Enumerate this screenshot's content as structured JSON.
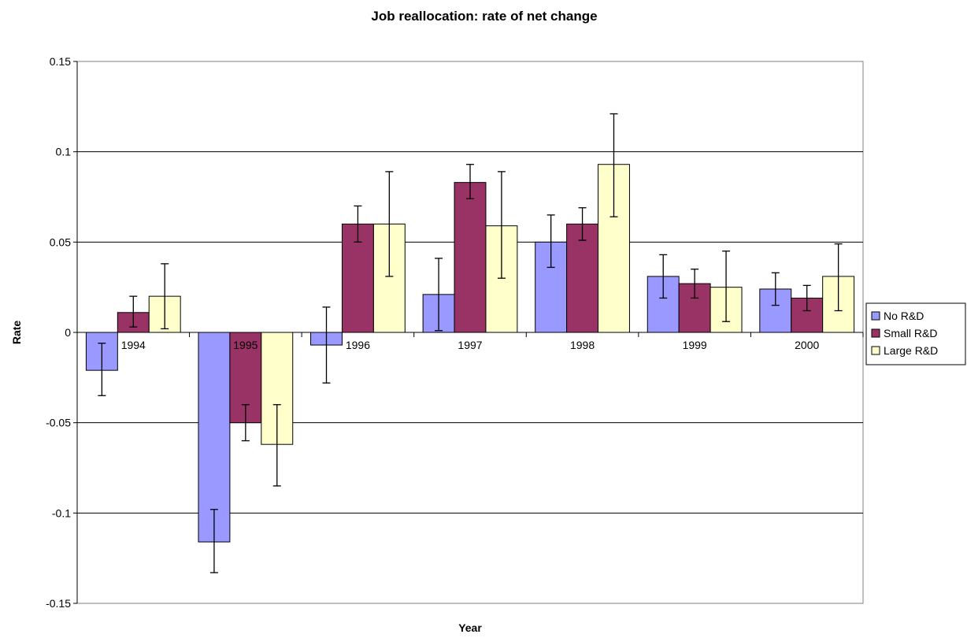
{
  "chart_data": {
    "type": "bar",
    "title": "Job reallocation: rate of net change",
    "xlabel": "Year",
    "ylabel": "Rate",
    "categories": [
      "1994",
      "1995",
      "1996",
      "1997",
      "1998",
      "1999",
      "2000"
    ],
    "ylim": [
      -0.15,
      0.15
    ],
    "yticks": [
      0.15,
      0.1,
      0.05,
      0,
      -0.05,
      -0.1,
      -0.15
    ],
    "ytick_labels": [
      "0.15",
      "0.1",
      "0.05",
      "0",
      "-0.05",
      "-0.1",
      "-0.15"
    ],
    "grid": true,
    "legend_position": "right",
    "series": [
      {
        "name": "No R&D",
        "color": "#9999FF",
        "values": [
          -0.021,
          -0.116,
          -0.007,
          0.021,
          0.05,
          0.031,
          0.024
        ],
        "error_low": [
          -0.035,
          -0.133,
          -0.028,
          0.001,
          0.036,
          0.019,
          0.015
        ],
        "error_high": [
          -0.006,
          -0.098,
          0.014,
          0.041,
          0.065,
          0.043,
          0.033
        ]
      },
      {
        "name": "Small R&D",
        "color": "#993366",
        "values": [
          0.011,
          -0.05,
          0.06,
          0.083,
          0.06,
          0.027,
          0.019
        ],
        "error_low": [
          0.003,
          -0.06,
          0.05,
          0.074,
          0.051,
          0.019,
          0.012
        ],
        "error_high": [
          0.02,
          -0.04,
          0.07,
          0.093,
          0.069,
          0.035,
          0.026
        ]
      },
      {
        "name": "Large R&D",
        "color": "#FFFFCC",
        "values": [
          0.02,
          -0.062,
          0.06,
          0.059,
          0.093,
          0.025,
          0.031
        ],
        "error_low": [
          0.002,
          -0.085,
          0.031,
          0.03,
          0.064,
          0.006,
          0.012
        ],
        "error_high": [
          0.038,
          -0.04,
          0.089,
          0.089,
          0.121,
          0.045,
          0.049
        ]
      }
    ]
  }
}
